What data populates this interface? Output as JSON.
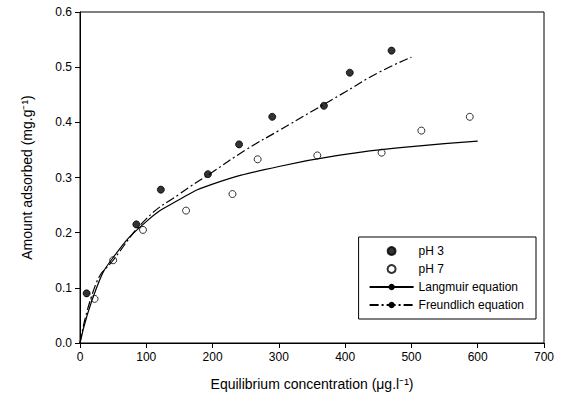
{
  "chart_data": {
    "type": "scatter",
    "x_label": "Equilibrium concentration (μg.l⁻¹)",
    "y_label": "Amount adsorbed (mg.g⁻¹)",
    "xlim": [
      0,
      700
    ],
    "xticks": [
      0,
      100,
      200,
      300,
      400,
      500,
      600,
      700
    ],
    "ylim": [
      0,
      0.6
    ],
    "yticks": [
      {
        "value": 0,
        "label": "0.0"
      },
      {
        "value": 0.1,
        "label": "0.1"
      },
      {
        "value": 0.2,
        "label": "0.2"
      },
      {
        "value": 0.3,
        "label": "0.3"
      },
      {
        "value": 0.4,
        "label": "0.4"
      },
      {
        "value": 0.5,
        "label": "0.5"
      },
      {
        "value": 0.6,
        "label": "0.6"
      }
    ],
    "grid": false,
    "legend": "lower right",
    "series": [
      {
        "name": "pH 3",
        "type": "scatter",
        "color": "#000000",
        "marker": "circle",
        "x": [
          10,
          85,
          122,
          193,
          240,
          290,
          368,
          407,
          470
        ],
        "values": [
          0.09,
          0.215,
          0.278,
          0.306,
          0.36,
          0.41,
          0.43,
          0.49,
          0.53
        ]
      },
      {
        "name": "pH 7",
        "type": "scatter",
        "color": "#000000",
        "marker": "open_circle",
        "x": [
          22,
          50,
          95,
          160,
          230,
          268,
          358,
          455,
          515,
          588
        ],
        "values": [
          0.08,
          0.15,
          0.205,
          0.24,
          0.27,
          0.333,
          0.34,
          0.345,
          0.385,
          0.41
        ]
      },
      {
        "name": "Langmuir equation",
        "type": "line",
        "color": "#000000",
        "line_style": "solid",
        "x": [
          0,
          25,
          50,
          100,
          150,
          200,
          300,
          400,
          500,
          600
        ],
        "values": [
          0,
          0.1,
          0.155,
          0.22,
          0.26,
          0.288,
          0.32,
          0.342,
          0.356,
          0.366
        ]
      },
      {
        "name": "Freundlich equation",
        "type": "line",
        "color": "#000000",
        "line_style": "dashdot",
        "x": [
          0,
          25,
          50,
          100,
          150,
          200,
          250,
          300,
          350,
          400,
          450,
          500
        ],
        "values": [
          0,
          0.11,
          0.15,
          0.225,
          0.27,
          0.31,
          0.35,
          0.385,
          0.42,
          0.455,
          0.49,
          0.518
        ]
      }
    ]
  }
}
